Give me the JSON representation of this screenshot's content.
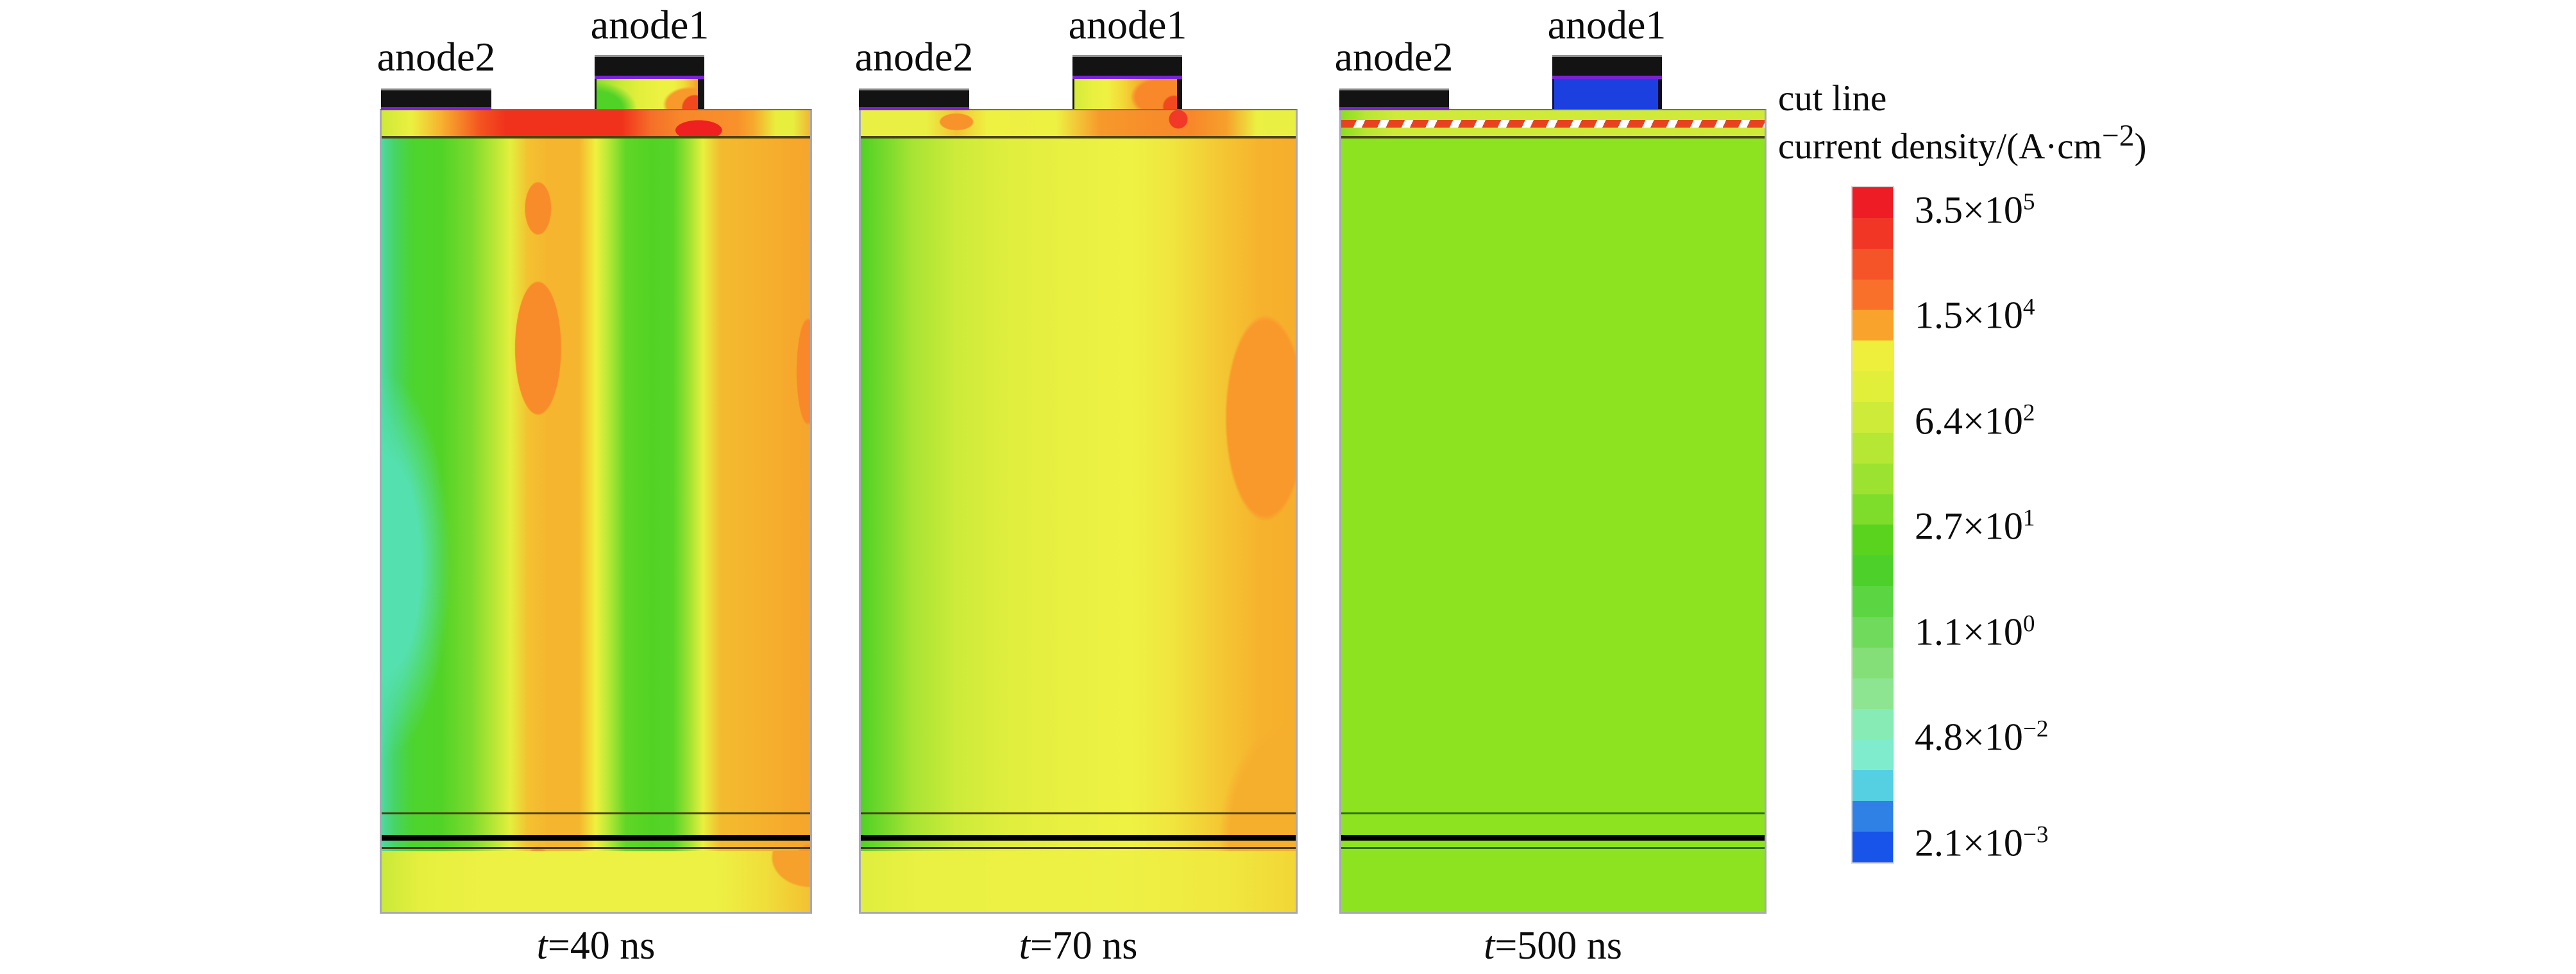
{
  "figure": {
    "background": "#ffffff"
  },
  "panels": [
    {
      "anode2_label": "anode2",
      "anode1_label": "anode1",
      "caption_italic": "t",
      "caption_rest": "=40 ns"
    },
    {
      "anode2_label": "anode2",
      "anode1_label": "anode1",
      "caption_italic": "t",
      "caption_rest": "=70 ns"
    },
    {
      "anode2_label": "anode2",
      "anode1_label": "anode1",
      "caption_italic": "t",
      "caption_rest": "=500 ns"
    }
  ],
  "legend": {
    "cut_line_label": "cut line",
    "title_prefix": "current density/(A·cm",
    "title_exp": "−2",
    "title_suffix": ")"
  },
  "colorbar": {
    "segments": [
      "#ee1c24",
      "#f13626",
      "#f55328",
      "#f8702a",
      "#faa32c",
      "#eeee3c",
      "#e2ef3a",
      "#cdeb38",
      "#b5e734",
      "#9ce231",
      "#7edc2a",
      "#5ad31f",
      "#4ed02a",
      "#5bd542",
      "#70da5c",
      "#85df78",
      "#8ee591",
      "#87ebb6",
      "#7eeccd",
      "#55cfe2",
      "#2f81e6",
      "#1853ea"
    ],
    "ticks": [
      {
        "m": "3.5×10",
        "e": "5"
      },
      {
        "m": "1.5×10",
        "e": "4"
      },
      {
        "m": "6.4×10",
        "e": "2"
      },
      {
        "m": "2.7×10",
        "e": "1"
      },
      {
        "m": "1.1×10",
        "e": "0"
      },
      {
        "m": "4.8×10",
        "e": "−2"
      },
      {
        "m": "2.1×10",
        "e": "−3"
      }
    ]
  },
  "colors": {
    "electrode": "#131313",
    "contact_line": "#7a22d8",
    "mesa_blue": "#1c40e0",
    "cut_line_red": "#e8431f"
  },
  "chart_data": {
    "type": "heatmap",
    "title": "Current density contour maps of dual-anode device cross-section at three times",
    "panels": [
      {
        "time_label": "t=40 ns",
        "time_ns": 40,
        "description": "alternating green (low ~1e1) and orange (high ~1e4) vertical filaments under anodes; red band ~3e5 at top surface"
      },
      {
        "time_label": "t=70 ns",
        "time_ns": 70,
        "description": "green left edge grading to yellow center ~1e3 and orange right side ~1e4; red hot spot at anode1 right corner"
      },
      {
        "time_label": "t=500 ns",
        "time_ns": 500,
        "description": "uniform green ~6e2 everywhere; anode1 mesa blue ~2e-3; red dashed cut line near surface"
      }
    ],
    "colorbar": {
      "label": "current density/(A·cm−2)",
      "scale": "log",
      "tick_values": [
        350000,
        15000,
        640,
        27,
        1.1,
        0.048,
        0.0021
      ],
      "top_color": "#ee1c24",
      "bottom_color": "#1853ea"
    },
    "annotations": [
      "cut line (red dashed, panel t=500 ns)",
      "anode1",
      "anode2"
    ]
  }
}
